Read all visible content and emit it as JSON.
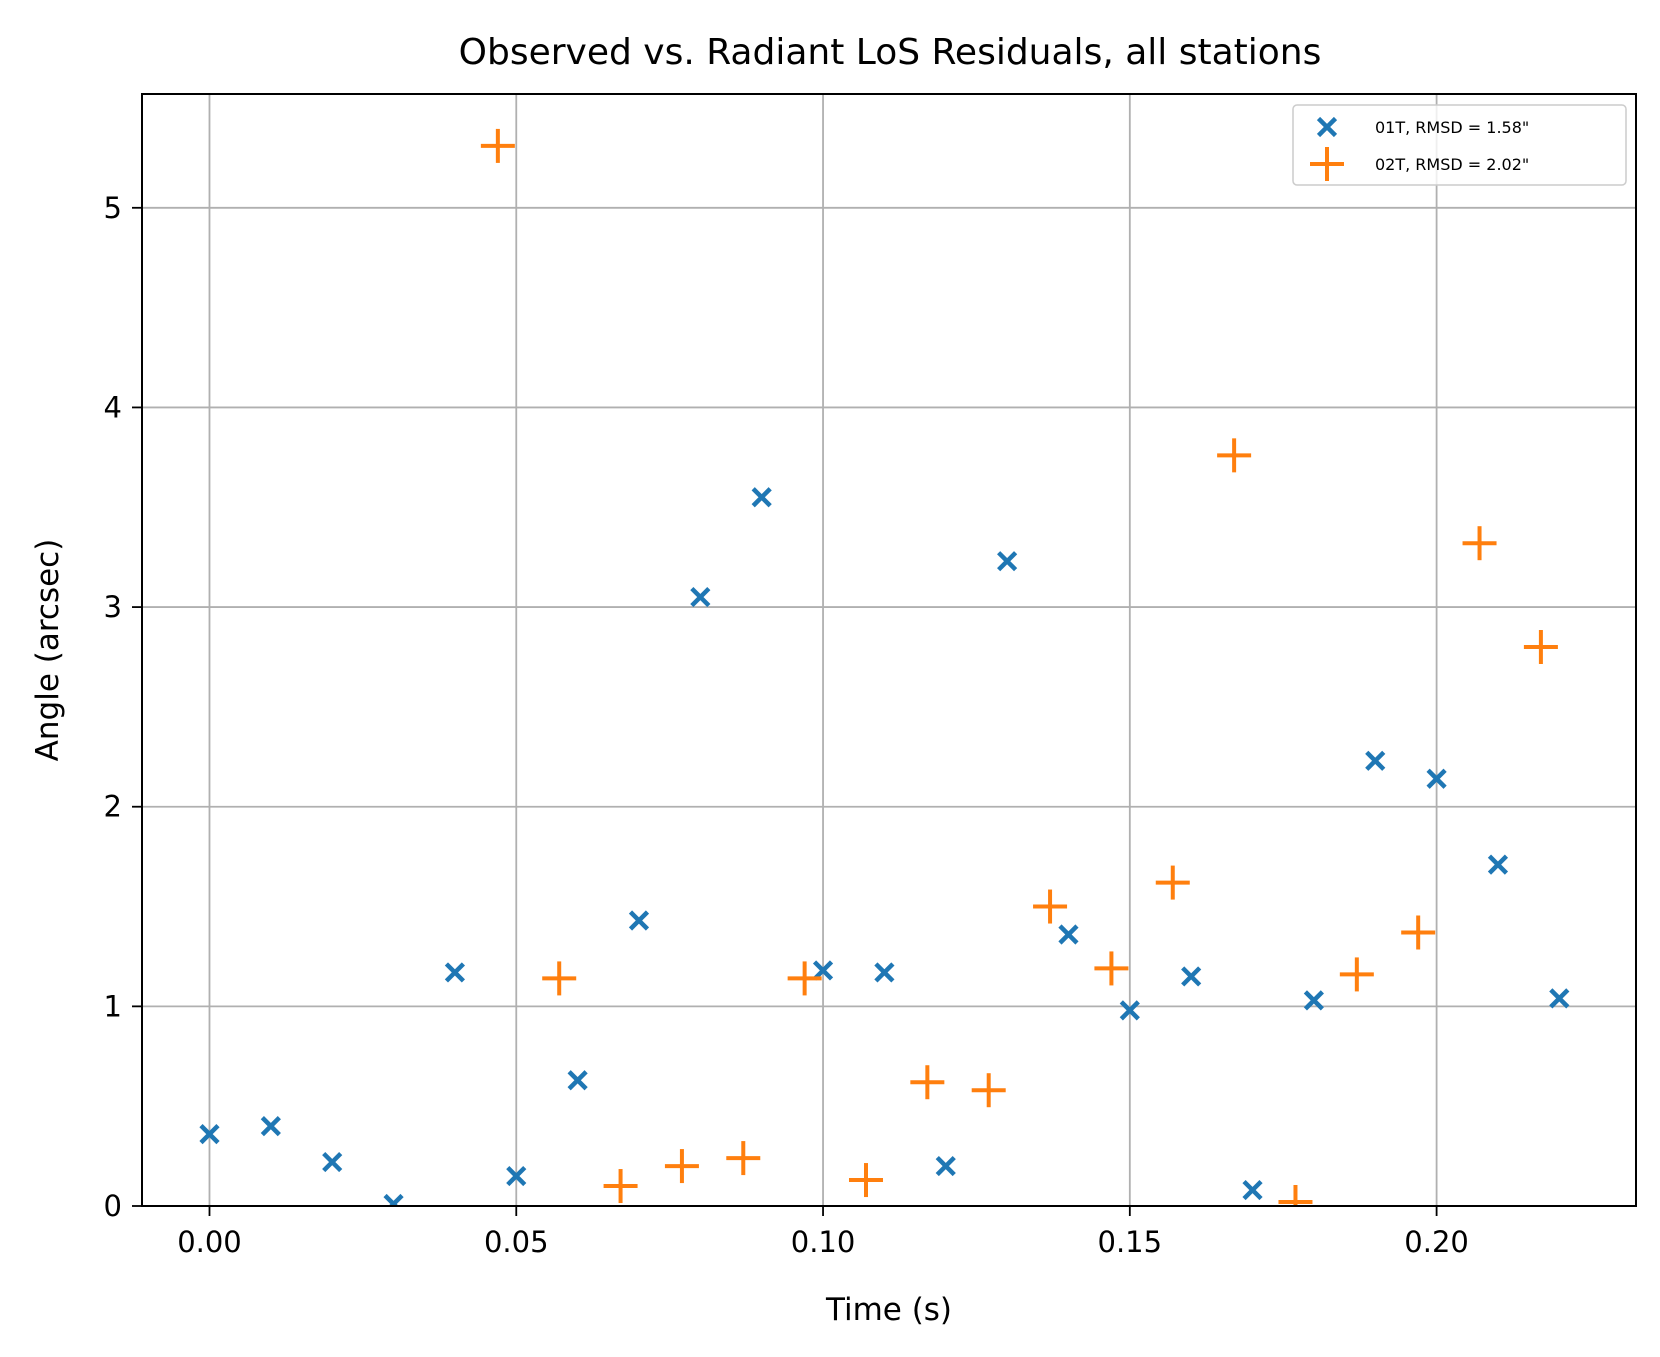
{
  "chart_data": {
    "type": "scatter",
    "title": "Observed vs. Radiant LoS Residuals, all stations",
    "xlabel": "Time (s)",
    "ylabel": "Angle (arcsec)",
    "xlim": [
      -0.011,
      0.2325
    ],
    "ylim": [
      0,
      5.57
    ],
    "xticks": [
      0.0,
      0.05,
      0.1,
      0.15,
      0.2
    ],
    "xtick_labels": [
      "0.00",
      "0.05",
      "0.10",
      "0.15",
      "0.20"
    ],
    "yticks": [
      0,
      1,
      2,
      3,
      4,
      5
    ],
    "ytick_labels": [
      "0",
      "1",
      "2",
      "3",
      "4",
      "5"
    ],
    "grid": true,
    "legend_position": "top-right",
    "series": [
      {
        "name": "01T, RMSD = 1.58\"",
        "marker": "x",
        "color": "#1f77b4",
        "points": [
          [
            0.0,
            0.36
          ],
          [
            0.01,
            0.4
          ],
          [
            0.02,
            0.22
          ],
          [
            0.03,
            0.01
          ],
          [
            0.04,
            1.17
          ],
          [
            0.05,
            0.15
          ],
          [
            0.06,
            0.63
          ],
          [
            0.07,
            1.43
          ],
          [
            0.08,
            3.05
          ],
          [
            0.09,
            3.55
          ],
          [
            0.1,
            1.18
          ],
          [
            0.11,
            1.17
          ],
          [
            0.12,
            0.2
          ],
          [
            0.13,
            3.23
          ],
          [
            0.14,
            1.36
          ],
          [
            0.15,
            0.98
          ],
          [
            0.16,
            1.15
          ],
          [
            0.17,
            0.08
          ],
          [
            0.18,
            1.03
          ],
          [
            0.19,
            2.23
          ],
          [
            0.2,
            2.14
          ],
          [
            0.21,
            1.71
          ],
          [
            0.22,
            1.04
          ]
        ]
      },
      {
        "name": "02T, RMSD = 2.02\"",
        "marker": "+",
        "color": "#ff7f0e",
        "points": [
          [
            0.047,
            5.31
          ],
          [
            0.057,
            1.14
          ],
          [
            0.067,
            0.1
          ],
          [
            0.077,
            0.2
          ],
          [
            0.087,
            0.24
          ],
          [
            0.097,
            1.14
          ],
          [
            0.107,
            0.13
          ],
          [
            0.117,
            0.62
          ],
          [
            0.127,
            0.58
          ],
          [
            0.137,
            1.5
          ],
          [
            0.147,
            1.19
          ],
          [
            0.157,
            1.62
          ],
          [
            0.167,
            3.76
          ],
          [
            0.177,
            0.02
          ],
          [
            0.187,
            1.16
          ],
          [
            0.197,
            1.37
          ],
          [
            0.207,
            3.32
          ],
          [
            0.217,
            2.8
          ]
        ]
      }
    ]
  }
}
